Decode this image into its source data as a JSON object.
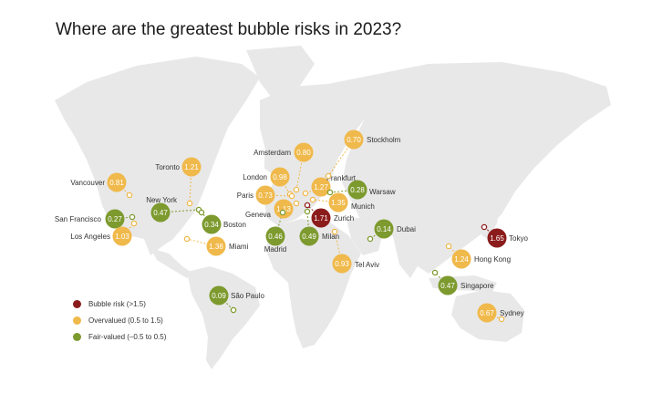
{
  "title": "Where are the greatest bubble risks in 2023?",
  "colors": {
    "bubble": "#8c1c1c",
    "overvalued": "#f0b94b",
    "fair": "#7d9a2e",
    "land": "#e8e8e8",
    "background": "#ffffff"
  },
  "legend": [
    {
      "category": "bubble",
      "label": "Bubble risk (>1.5)"
    },
    {
      "category": "overvalued",
      "label": "Overvalued (0.5 to 1.5)"
    },
    {
      "category": "fair",
      "label": "Fair-valued (–0.5 to 0.5)"
    }
  ],
  "cities": [
    {
      "name": "Vancouver",
      "value": "0.81",
      "category": "overvalued"
    },
    {
      "name": "Toronto",
      "value": "1.21",
      "category": "overvalued"
    },
    {
      "name": "New York",
      "value": "0.47",
      "category": "fair"
    },
    {
      "name": "San Francisco",
      "value": "0.27",
      "category": "fair"
    },
    {
      "name": "Boston",
      "value": "0.34",
      "category": "fair"
    },
    {
      "name": "Los Angeles",
      "value": "1.03",
      "category": "overvalued"
    },
    {
      "name": "Miami",
      "value": "1.38",
      "category": "overvalued"
    },
    {
      "name": "São Paulo",
      "value": "0.09",
      "category": "fair"
    },
    {
      "name": "Amsterdam",
      "value": "0.80",
      "category": "overvalued"
    },
    {
      "name": "London",
      "value": "0.98",
      "category": "overvalued"
    },
    {
      "name": "Paris",
      "value": "0.73",
      "category": "overvalued"
    },
    {
      "name": "Geneva",
      "value": "1.13",
      "category": "overvalued"
    },
    {
      "name": "Madrid",
      "value": "0.46",
      "category": "fair"
    },
    {
      "name": "Milan",
      "value": "0.49",
      "category": "fair"
    },
    {
      "name": "Zurich",
      "value": "1.71",
      "category": "bubble"
    },
    {
      "name": "Frankfurt",
      "value": "1.27",
      "category": "overvalued"
    },
    {
      "name": "Munich",
      "value": "1.35",
      "category": "overvalued"
    },
    {
      "name": "Warsaw",
      "value": "0.28",
      "category": "fair"
    },
    {
      "name": "Stockholm",
      "value": "0.70",
      "category": "overvalued"
    },
    {
      "name": "Dubai",
      "value": "0.14",
      "category": "fair"
    },
    {
      "name": "Tel Aviv",
      "value": "0.93",
      "category": "overvalued"
    },
    {
      "name": "Tokyo",
      "value": "1.65",
      "category": "bubble"
    },
    {
      "name": "Hong Kong",
      "value": "1.24",
      "category": "overvalued"
    },
    {
      "name": "Singapore",
      "value": "0.47",
      "category": "fair"
    },
    {
      "name": "Sydney",
      "value": "0.67",
      "category": "overvalued"
    }
  ]
}
